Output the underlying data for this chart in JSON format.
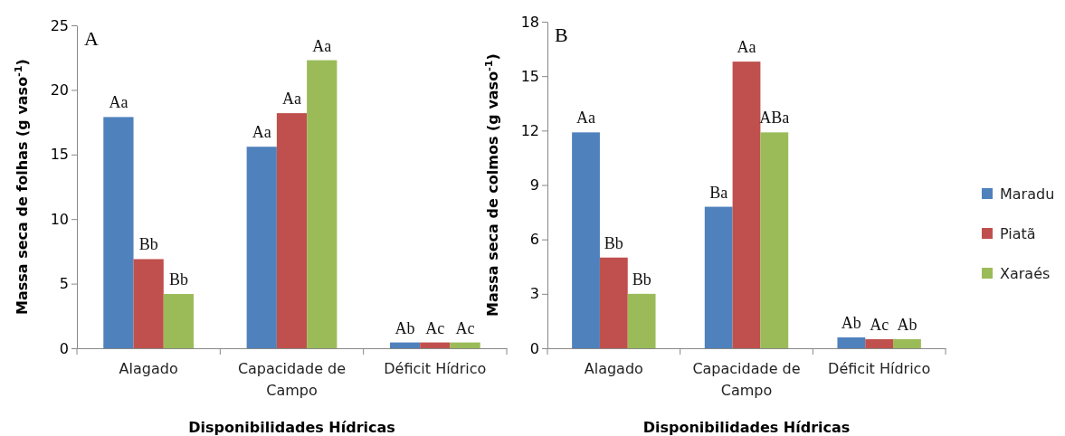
{
  "chart_data": [
    {
      "type": "bar",
      "categories": [
        "Alagado",
        "Capacidade de Campo",
        "Déficit Hídrico"
      ],
      "xlabel": "Disponibilidades Hídricas",
      "ylabel": "Massa seca de folhas (g vaso$^{-1}$)",
      "ylim": [
        0,
        25
      ],
      "yticks": [
        0,
        5,
        10,
        15,
        20,
        25
      ],
      "grid": false,
      "annotations": [
        "A"
      ],
      "series": [
        {
          "color": "#4f81bd",
          "values": [
            17.9,
            15.6,
            0.45
          ],
          "value_labels": [
            "Aa",
            "Aa",
            "Ab"
          ]
        },
        {
          "color": "#c0504d",
          "values": [
            6.9,
            18.2,
            0.45
          ],
          "value_labels": [
            "Bb",
            "Aa",
            "Ac"
          ]
        },
        {
          "color": "#9bbb59",
          "values": [
            4.2,
            22.3,
            0.45
          ],
          "value_labels": [
            "Bb",
            "Aa",
            "Ac"
          ]
        }
      ]
    },
    {
      "type": "bar",
      "categories": [
        "Alagado",
        "Capacidade de Campo",
        "Déficit Hídrico"
      ],
      "xlabel": "Disponibilidades Hídricas",
      "ylabel": "Massa seca de colmos (g vaso$^{-1}$)",
      "ylim": [
        0,
        18
      ],
      "yticks": [
        0,
        3,
        6,
        9,
        12,
        15,
        18
      ],
      "grid": false,
      "legend": "right",
      "annotations": [
        "B"
      ],
      "series": [
        {
          "name": "Maradu",
          "color": "#4f81bd",
          "values": [
            11.9,
            7.8,
            0.6
          ],
          "value_labels": [
            "Aa",
            "Ba",
            "Ab"
          ]
        },
        {
          "name": "Piatã",
          "color": "#c0504d",
          "values": [
            5.0,
            15.8,
            0.5
          ],
          "value_labels": [
            "Bb",
            "Aa",
            "Ac"
          ]
        },
        {
          "name": "Xaraés",
          "color": "#9bbb59",
          "values": [
            3.0,
            11.9,
            0.5
          ],
          "value_labels": [
            "Bb",
            "ABa",
            "Ab"
          ]
        }
      ]
    }
  ]
}
